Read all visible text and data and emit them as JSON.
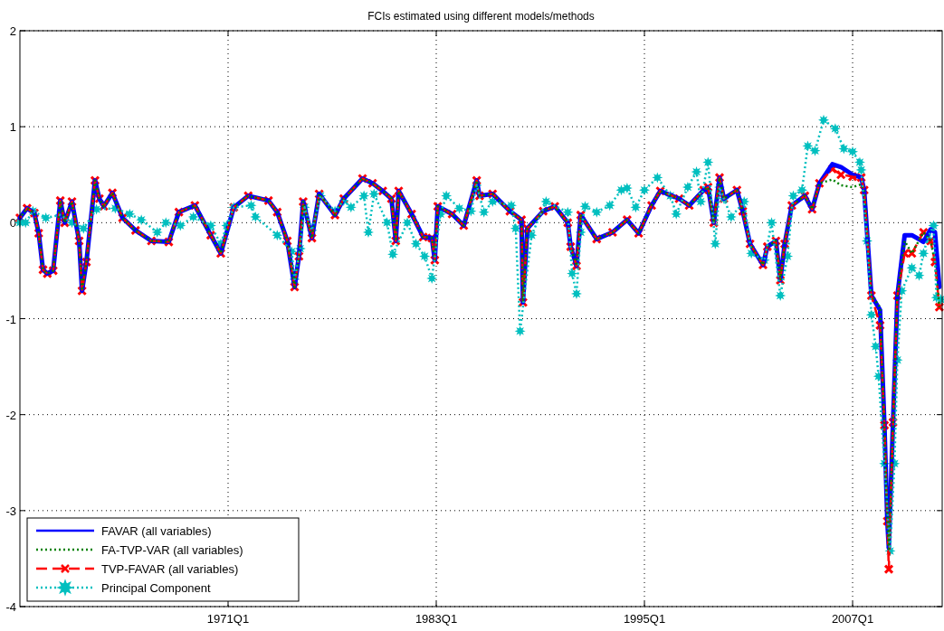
{
  "chart_data": {
    "type": "line",
    "title": "FCIs estimated using different models/methods",
    "xlim": [
      "1959-01",
      "2012-03"
    ],
    "ylim": [
      -4,
      2
    ],
    "xticks": [
      {
        "value": "1971-01",
        "label": "1971Q1"
      },
      {
        "value": "1983-01",
        "label": "1983Q1"
      },
      {
        "value": "1995-01",
        "label": "1995Q1"
      },
      {
        "value": "2007-01",
        "label": "2007Q1"
      }
    ],
    "yticks": [
      -4,
      -3,
      -2,
      -1,
      0,
      1,
      2
    ],
    "grid": true,
    "legend": "bottom left",
    "series": [
      {
        "name": "FAVAR (all variables)",
        "color": "#0000ff",
        "line_style": "solid",
        "marker": "none",
        "x": [
          "1959-01",
          "1959-06",
          "1959-11",
          "1960-02",
          "1960-05",
          "1960-08",
          "1960-12",
          "1961-05",
          "1961-08",
          "1962-01",
          "1962-06",
          "1962-08",
          "1962-11",
          "1963-05",
          "1963-08",
          "1963-11",
          "1964-05",
          "1964-12",
          "1965-09",
          "1966-08",
          "1967-08",
          "1968-03",
          "1969-02",
          "1970-01",
          "1970-08",
          "1971-05",
          "1972-03",
          "1973-05",
          "1973-11",
          "1974-06",
          "1974-11",
          "1975-02",
          "1975-05",
          "1975-11",
          "1976-04",
          "1977-03",
          "1977-09",
          "1978-10",
          "1979-05",
          "1979-12",
          "1980-06",
          "1980-09",
          "1980-11",
          "1981-08",
          "1982-04",
          "1982-10",
          "1982-12",
          "1983-02",
          "1983-12",
          "1984-08",
          "1985-05",
          "1985-07",
          "1986-04",
          "1987-04",
          "1987-12",
          "1988-01",
          "1988-04",
          "1989-03",
          "1989-11",
          "1990-08",
          "1990-10",
          "1991-02",
          "1991-05",
          "1992-04",
          "1993-03",
          "1994-01",
          "1994-09",
          "1995-06",
          "1995-12",
          "1997-01",
          "1997-08",
          "1998-06",
          "1998-09",
          "1999-01",
          "1999-05",
          "1999-08",
          "2000-05",
          "2000-09",
          "2001-02",
          "2001-11",
          "2002-02",
          "2002-08",
          "2002-11",
          "2003-02",
          "2003-07",
          "2004-04",
          "2004-09",
          "2005-02",
          "2005-11",
          "2006-05",
          "2007-01",
          "2007-07",
          "2007-09",
          "2008-02",
          "2008-08",
          "2008-11",
          "2009-01",
          "2009-02",
          "2009-05",
          "2009-08",
          "2010-01",
          "2010-06",
          "2011-02",
          "2011-07",
          "2011-10",
          "2012-01"
        ],
        "values": [
          0.05,
          0.15,
          0.1,
          -0.11,
          -0.49,
          -0.53,
          -0.5,
          0.23,
          0.0,
          0.22,
          -0.19,
          -0.71,
          -0.41,
          0.44,
          0.25,
          0.17,
          0.31,
          0.05,
          -0.08,
          -0.19,
          -0.2,
          0.11,
          0.18,
          -0.13,
          -0.32,
          0.16,
          0.28,
          0.23,
          0.11,
          -0.19,
          -0.67,
          -0.35,
          0.22,
          -0.16,
          0.3,
          0.08,
          0.25,
          0.46,
          0.41,
          0.33,
          0.25,
          -0.19,
          0.33,
          0.09,
          -0.15,
          -0.16,
          -0.39,
          0.17,
          0.09,
          -0.03,
          0.44,
          0.28,
          0.3,
          0.12,
          0.03,
          -0.83,
          -0.06,
          0.12,
          0.17,
          0.0,
          -0.25,
          -0.45,
          0.08,
          -0.17,
          -0.1,
          0.03,
          -0.11,
          0.18,
          0.33,
          0.25,
          0.18,
          0.34,
          0.37,
          0.0,
          0.47,
          0.25,
          0.34,
          0.12,
          -0.22,
          -0.44,
          -0.25,
          -0.19,
          -0.6,
          -0.22,
          0.18,
          0.28,
          0.14,
          0.41,
          0.61,
          0.58,
          0.5,
          0.47,
          0.34,
          -0.76,
          -0.91,
          -2.11,
          -3.11,
          -3.39,
          -2.08,
          -0.76,
          -0.13,
          -0.13,
          -0.2,
          -0.07,
          -0.1,
          -0.67
        ]
      },
      {
        "name": "FA-TVP-VAR (all variables)",
        "color": "#008000",
        "line_style": "dotted",
        "marker": "none",
        "x": [
          "1959-01",
          "1959-06",
          "1959-11",
          "1960-02",
          "1960-05",
          "1960-08",
          "1960-12",
          "1961-05",
          "1961-08",
          "1962-01",
          "1962-06",
          "1962-08",
          "1962-11",
          "1963-05",
          "1963-08",
          "1963-11",
          "1964-05",
          "1964-12",
          "1965-09",
          "1966-08",
          "1967-08",
          "1968-03",
          "1969-02",
          "1970-01",
          "1970-08",
          "1971-05",
          "1972-03",
          "1973-05",
          "1973-11",
          "1974-06",
          "1974-11",
          "1975-02",
          "1975-05",
          "1975-11",
          "1976-04",
          "1977-03",
          "1977-09",
          "1978-10",
          "1979-05",
          "1979-12",
          "1980-06",
          "1980-09",
          "1980-11",
          "1981-08",
          "1982-04",
          "1982-10",
          "1982-12",
          "1983-02",
          "1983-12",
          "1984-08",
          "1985-05",
          "1985-07",
          "1986-04",
          "1987-04",
          "1987-12",
          "1988-01",
          "1988-04",
          "1989-03",
          "1989-11",
          "1990-08",
          "1990-10",
          "1991-02",
          "1991-05",
          "1992-04",
          "1993-03",
          "1994-01",
          "1994-09",
          "1995-06",
          "1995-12",
          "1997-01",
          "1997-08",
          "1998-06",
          "1998-09",
          "1999-01",
          "1999-05",
          "1999-08",
          "2000-05",
          "2000-09",
          "2001-02",
          "2001-11",
          "2002-02",
          "2002-08",
          "2002-11",
          "2003-02",
          "2003-07",
          "2004-04",
          "2004-09",
          "2005-02",
          "2005-11",
          "2006-05",
          "2007-01",
          "2007-07",
          "2007-09",
          "2008-02",
          "2008-08",
          "2008-11",
          "2009-01",
          "2009-02",
          "2009-05",
          "2009-08",
          "2010-01",
          "2010-06",
          "2011-02",
          "2011-07",
          "2011-10",
          "2012-01"
        ],
        "values": [
          0.05,
          0.15,
          0.1,
          -0.11,
          -0.49,
          -0.53,
          -0.5,
          0.23,
          0.0,
          0.22,
          -0.19,
          -0.71,
          -0.41,
          0.44,
          0.25,
          0.17,
          0.31,
          0.05,
          -0.08,
          -0.19,
          -0.2,
          0.11,
          0.18,
          -0.13,
          -0.32,
          0.16,
          0.28,
          0.23,
          0.11,
          -0.19,
          -0.67,
          -0.35,
          0.22,
          -0.16,
          0.3,
          0.08,
          0.25,
          0.46,
          0.41,
          0.33,
          0.25,
          -0.19,
          0.33,
          0.09,
          -0.15,
          -0.16,
          -0.39,
          0.17,
          0.09,
          -0.03,
          0.44,
          0.28,
          0.3,
          0.12,
          0.03,
          -0.83,
          -0.06,
          0.12,
          0.17,
          0.0,
          -0.25,
          -0.45,
          0.08,
          -0.17,
          -0.1,
          0.03,
          -0.11,
          0.18,
          0.33,
          0.25,
          0.18,
          0.34,
          0.37,
          0.0,
          0.47,
          0.25,
          0.34,
          0.12,
          -0.22,
          -0.44,
          -0.25,
          -0.19,
          -0.6,
          -0.22,
          0.18,
          0.28,
          0.14,
          0.41,
          0.45,
          0.39,
          0.37,
          0.4,
          0.34,
          -0.76,
          -0.88,
          -2.11,
          -3.11,
          -3.4,
          -2.08,
          -0.76,
          -0.19,
          -0.32,
          -0.1,
          -0.19,
          -0.41,
          -0.88
        ]
      },
      {
        "name": "TVP-FAVAR (all variables)",
        "color": "#ff0000",
        "line_style": "dashed",
        "marker": "cross",
        "x": [
          "1959-01",
          "1959-06",
          "1959-11",
          "1960-02",
          "1960-05",
          "1960-08",
          "1960-12",
          "1961-05",
          "1961-08",
          "1962-01",
          "1962-06",
          "1962-08",
          "1962-11",
          "1963-05",
          "1963-08",
          "1963-11",
          "1964-05",
          "1964-12",
          "1965-09",
          "1966-08",
          "1967-08",
          "1968-03",
          "1969-02",
          "1970-01",
          "1970-08",
          "1971-05",
          "1972-03",
          "1973-05",
          "1973-11",
          "1974-06",
          "1974-11",
          "1975-02",
          "1975-05",
          "1975-11",
          "1976-04",
          "1977-03",
          "1977-09",
          "1978-10",
          "1979-05",
          "1979-12",
          "1980-06",
          "1980-09",
          "1980-11",
          "1981-08",
          "1982-04",
          "1982-10",
          "1982-12",
          "1983-02",
          "1983-12",
          "1984-08",
          "1985-05",
          "1985-07",
          "1986-04",
          "1987-04",
          "1987-12",
          "1988-01",
          "1988-04",
          "1989-03",
          "1989-11",
          "1990-08",
          "1990-10",
          "1991-02",
          "1991-05",
          "1992-04",
          "1993-03",
          "1994-01",
          "1994-09",
          "1995-06",
          "1995-12",
          "1997-01",
          "1997-08",
          "1998-06",
          "1998-09",
          "1999-01",
          "1999-05",
          "1999-08",
          "2000-05",
          "2000-09",
          "2001-02",
          "2001-11",
          "2002-02",
          "2002-08",
          "2002-11",
          "2003-02",
          "2003-07",
          "2004-04",
          "2004-09",
          "2005-02",
          "2005-11",
          "2006-05",
          "2007-01",
          "2007-07",
          "2007-09",
          "2008-02",
          "2008-08",
          "2008-11",
          "2009-01",
          "2009-02",
          "2009-05",
          "2009-08",
          "2010-01",
          "2010-06",
          "2011-02",
          "2011-07",
          "2011-10",
          "2012-01"
        ],
        "values": [
          0.05,
          0.15,
          0.1,
          -0.11,
          -0.49,
          -0.53,
          -0.5,
          0.23,
          0.0,
          0.22,
          -0.19,
          -0.71,
          -0.41,
          0.44,
          0.25,
          0.17,
          0.31,
          0.05,
          -0.08,
          -0.19,
          -0.2,
          0.11,
          0.18,
          -0.13,
          -0.32,
          0.16,
          0.28,
          0.23,
          0.11,
          -0.19,
          -0.67,
          -0.35,
          0.22,
          -0.16,
          0.3,
          0.08,
          0.25,
          0.46,
          0.41,
          0.33,
          0.25,
          -0.19,
          0.33,
          0.09,
          -0.15,
          -0.16,
          -0.39,
          0.17,
          0.09,
          -0.03,
          0.44,
          0.28,
          0.3,
          0.12,
          0.03,
          -0.83,
          -0.06,
          0.12,
          0.17,
          0.0,
          -0.25,
          -0.45,
          0.08,
          -0.17,
          -0.1,
          0.03,
          -0.11,
          0.18,
          0.33,
          0.25,
          0.18,
          0.34,
          0.37,
          0.0,
          0.47,
          0.25,
          0.34,
          0.12,
          -0.22,
          -0.44,
          -0.25,
          -0.19,
          -0.6,
          -0.22,
          0.18,
          0.28,
          0.14,
          0.41,
          0.56,
          0.5,
          0.48,
          0.47,
          0.34,
          -0.76,
          -1.07,
          -2.11,
          -3.11,
          -3.61,
          -2.08,
          -0.76,
          -0.32,
          -0.32,
          -0.1,
          -0.19,
          -0.41,
          -0.88
        ]
      },
      {
        "name": "Principal Component",
        "color": "#00bfbf",
        "line_style": "dotted",
        "marker": "star",
        "x": [
          "1959-01",
          "1959-05",
          "1959-10",
          "1960-07",
          "1961-05",
          "1962-01",
          "1962-09",
          "1963-06",
          "1964-07",
          "1965-05",
          "1966-01",
          "1966-12",
          "1967-06",
          "1968-04",
          "1969-01",
          "1970-01",
          "1970-08",
          "1970-12",
          "1971-05",
          "1972-05",
          "1972-08",
          "1973-11",
          "1974-09",
          "1974-11",
          "1975-03",
          "1975-06",
          "1975-11",
          "1976-05",
          "1977-03",
          "1977-09",
          "1978-02",
          "1978-11",
          "1979-02",
          "1979-06",
          "1980-03",
          "1980-07",
          "1981-05",
          "1981-11",
          "1982-05",
          "1982-10",
          "1983-04",
          "1983-08",
          "1984-05",
          "1985-01",
          "1985-05",
          "1985-10",
          "1986-04",
          "1987-05",
          "1987-08",
          "1987-11",
          "1988-07",
          "1989-05",
          "1990-08",
          "1990-11",
          "1991-02",
          "1991-05",
          "1991-08",
          "1992-04",
          "1993-01",
          "1993-09",
          "1994-01",
          "1994-07",
          "1995-01",
          "1995-10",
          "1996-07",
          "1996-11",
          "1997-07",
          "1998-01",
          "1998-04",
          "1998-09",
          "1999-02",
          "1999-05",
          "1999-08",
          "2000-01",
          "2000-10",
          "2001-03",
          "2001-12",
          "2002-05",
          "2002-11",
          "2003-04",
          "2003-08",
          "2004-02",
          "2004-06",
          "2004-11",
          "2005-05",
          "2006-01",
          "2006-07",
          "2007-01",
          "2007-06",
          "2007-07",
          "2007-11",
          "2008-02",
          "2008-05",
          "2008-07",
          "2008-11",
          "2009-03",
          "2009-06",
          "2009-08",
          "2009-11",
          "2010-06",
          "2010-11",
          "2011-02",
          "2011-05",
          "2011-09",
          "2011-11",
          "2012-02"
        ],
        "values": [
          0.0,
          0.0,
          0.12,
          0.05,
          0.08,
          0.0,
          -0.06,
          0.14,
          0.15,
          0.09,
          0.03,
          -0.1,
          0.0,
          -0.03,
          0.06,
          -0.03,
          -0.22,
          -0.03,
          0.16,
          0.18,
          0.06,
          -0.13,
          -0.3,
          -0.59,
          -0.27,
          0.16,
          -0.08,
          0.28,
          0.12,
          0.23,
          0.16,
          0.28,
          -0.1,
          0.3,
          0.0,
          -0.33,
          0.0,
          -0.22,
          -0.35,
          -0.58,
          0.09,
          0.28,
          0.15,
          0.12,
          0.39,
          0.11,
          0.22,
          0.18,
          -0.06,
          -1.13,
          -0.13,
          0.22,
          0.11,
          -0.53,
          -0.74,
          -0.1,
          0.17,
          0.11,
          0.18,
          0.34,
          0.36,
          0.16,
          0.34,
          0.47,
          0.28,
          0.09,
          0.37,
          0.53,
          0.22,
          0.63,
          -0.22,
          0.37,
          0.25,
          0.06,
          0.22,
          -0.32,
          -0.39,
          0.0,
          -0.76,
          -0.35,
          0.28,
          0.34,
          0.8,
          0.75,
          1.07,
          0.98,
          0.77,
          0.74,
          0.63,
          0.55,
          -0.19,
          -0.96,
          -1.29,
          -1.6,
          -2.51,
          -3.42,
          -2.51,
          -1.43,
          -0.71,
          -0.47,
          -0.55,
          -0.32,
          -0.16,
          -0.03,
          -0.78,
          -0.8
        ]
      }
    ]
  }
}
